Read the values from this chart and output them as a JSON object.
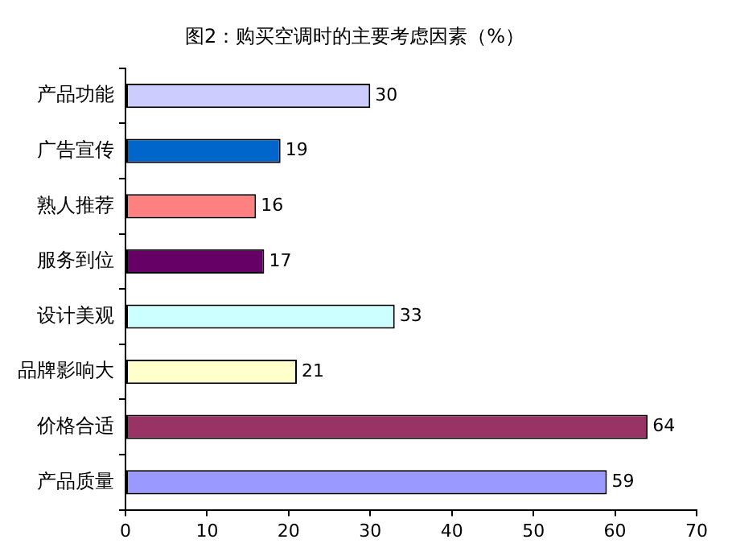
{
  "chart_data": {
    "type": "bar",
    "orientation": "horizontal",
    "title": "图2：购买空调时的主要考虑因素（%）",
    "categories": [
      "产品功能",
      "广告宣传",
      "熟人推荐",
      "服务到位",
      "设计美观",
      "品牌影响大",
      "价格合适",
      "产品质量"
    ],
    "values": [
      30,
      19,
      16,
      17,
      33,
      21,
      64,
      59
    ],
    "colors": [
      "#ccccff",
      "#0066cc",
      "#ff8080",
      "#660066",
      "#ccffff",
      "#ffffcc",
      "#993366",
      "#9999ff"
    ],
    "xlim": [
      0,
      70
    ],
    "xticks": [
      0,
      10,
      20,
      30,
      40,
      50,
      60,
      70
    ],
    "data_labels": true,
    "grid": false,
    "legend": false
  }
}
